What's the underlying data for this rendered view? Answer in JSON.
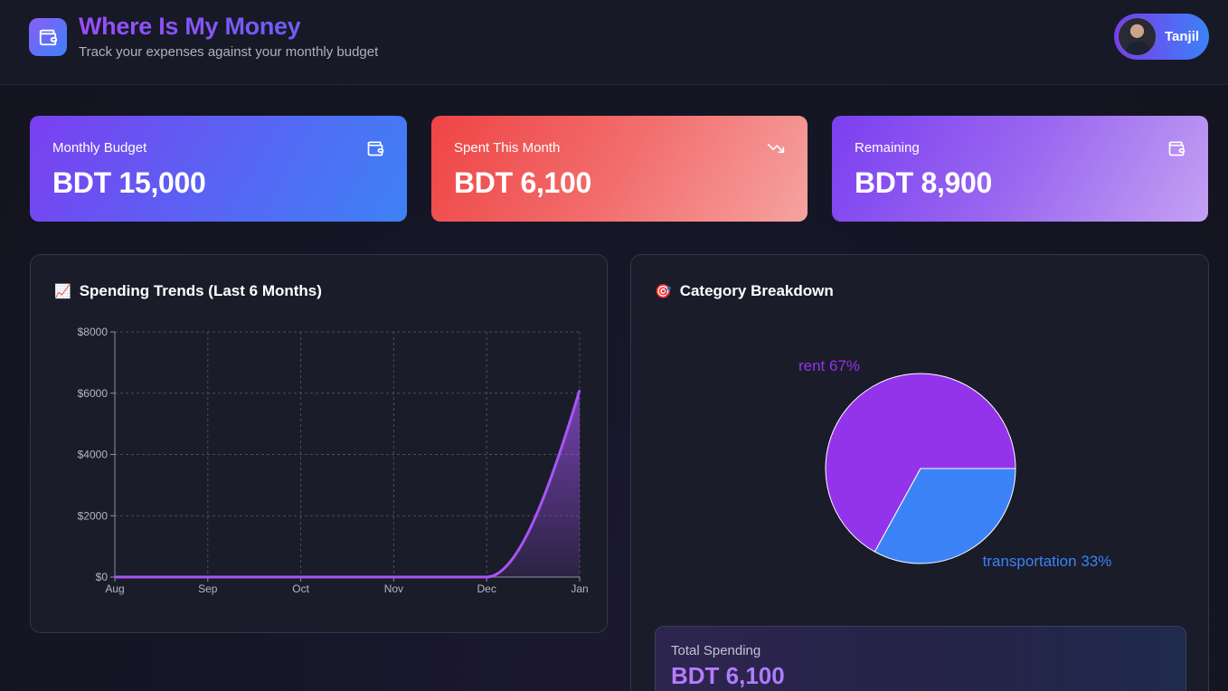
{
  "header": {
    "title": "Where Is My Money",
    "subtitle": "Track your expenses against your monthly budget",
    "user_name": "Tanjil",
    "logo_icon": "wallet-icon"
  },
  "stats": {
    "budget": {
      "label": "Monthly Budget",
      "value": "BDT 15,000",
      "icon": "wallet-icon"
    },
    "spent": {
      "label": "Spent This Month",
      "value": "BDT 6,100",
      "icon": "trending-down-icon"
    },
    "remaining": {
      "label": "Remaining",
      "value": "BDT 8,900",
      "icon": "wallet-icon"
    }
  },
  "trend_panel": {
    "title": "Spending Trends (Last 6 Months)",
    "emoji": "📈"
  },
  "category_panel": {
    "title": "Category Breakdown",
    "emoji": "🎯",
    "total_label": "Total Spending",
    "total_value": "BDT 6,100"
  },
  "colors": {
    "purple": "#9333ea",
    "blue": "#3b82f6",
    "line": "#a855f7"
  },
  "chart_data": [
    {
      "type": "area",
      "title": "Spending Trends (Last 6 Months)",
      "categories": [
        "Aug",
        "Sep",
        "Oct",
        "Nov",
        "Dec",
        "Jan"
      ],
      "values": [
        0,
        0,
        0,
        0,
        0,
        6100
      ],
      "ylim": [
        0,
        8000
      ],
      "yticks": [
        "$0",
        "$2000",
        "$4000",
        "$6000",
        "$8000"
      ],
      "grid": true
    },
    {
      "type": "pie",
      "title": "Category Breakdown",
      "slices": [
        {
          "name": "rent",
          "percent": 67,
          "label": "rent 67%"
        },
        {
          "name": "transportation",
          "percent": 33,
          "label": "transportation 33%"
        }
      ]
    }
  ]
}
